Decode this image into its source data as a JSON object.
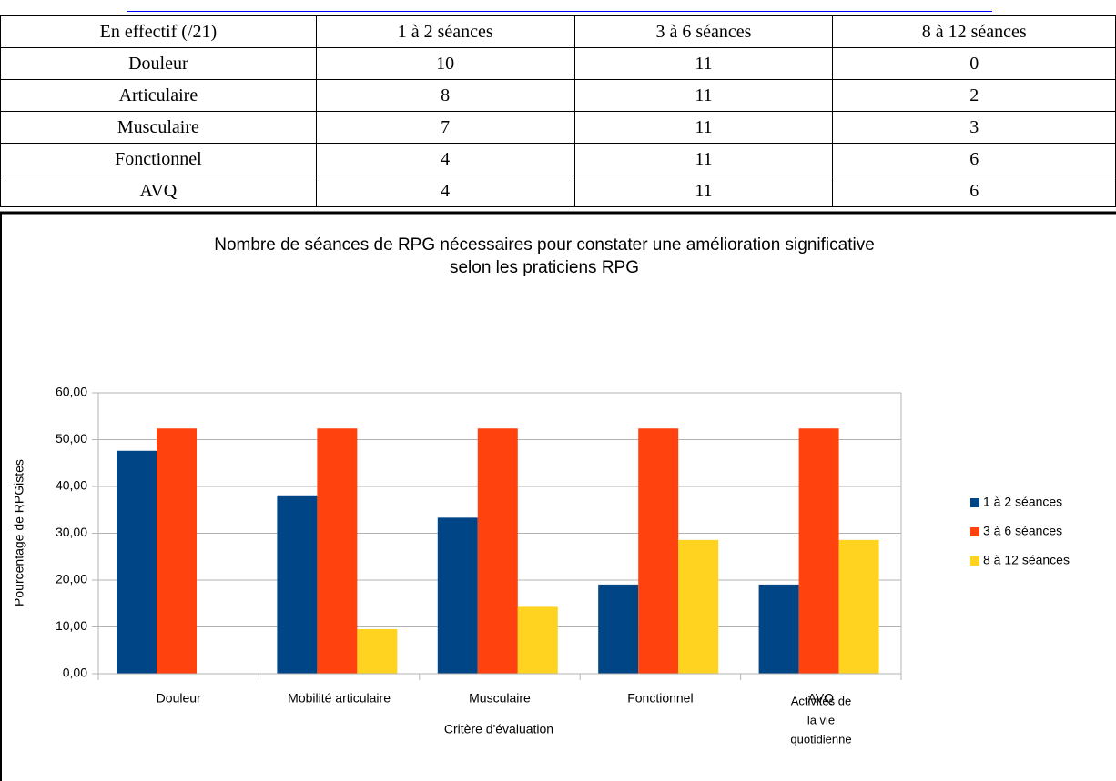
{
  "table": {
    "header": [
      "En effectif (/21)",
      "1 à 2 séances",
      "3 à 6 séances",
      "8 à 12 séances"
    ],
    "rows": [
      [
        "Douleur",
        10,
        11,
        0
      ],
      [
        "Articulaire",
        8,
        11,
        2
      ],
      [
        "Musculaire",
        7,
        11,
        3
      ],
      [
        "Fonctionnel",
        4,
        11,
        6
      ],
      [
        "AVQ",
        4,
        11,
        6
      ]
    ]
  },
  "chart_data": {
    "type": "bar",
    "title": [
      "Nombre de séances de RPG nécessaires pour constater une amélioration significative",
      "selon les praticiens RPG"
    ],
    "x_label": "Critère d'évaluation",
    "y_label": "Pourcentage de RPGistes",
    "annotation": [
      "Activités de",
      "la vie",
      "quotidienne"
    ],
    "categories": [
      "Douleur",
      "Mobilité articulaire",
      "Musculaire",
      "Fonctionnel",
      "AVQ"
    ],
    "series": [
      {
        "name": "1 à 2 séances",
        "color": "#004586",
        "values": [
          47.62,
          38.1,
          33.33,
          19.05,
          19.05
        ]
      },
      {
        "name": "3 à 6 séances",
        "color": "#ff420e",
        "values": [
          52.38,
          52.38,
          52.38,
          52.38,
          52.38
        ]
      },
      {
        "name": "8 à 12 séances",
        "color": "#ffd320",
        "values": [
          0,
          9.52,
          14.29,
          28.57,
          28.57
        ]
      }
    ],
    "ylim": [
      0,
      60
    ],
    "yticks": [
      {
        "value": 0,
        "label": "0,00"
      },
      {
        "value": 10,
        "label": "10,00"
      },
      {
        "value": 20,
        "label": "20,00"
      },
      {
        "value": 30,
        "label": "30,00"
      },
      {
        "value": 40,
        "label": "40,00"
      },
      {
        "value": 50,
        "label": "50,00"
      },
      {
        "value": 60,
        "label": "60,00"
      }
    ],
    "grid": true,
    "legend": "right"
  }
}
